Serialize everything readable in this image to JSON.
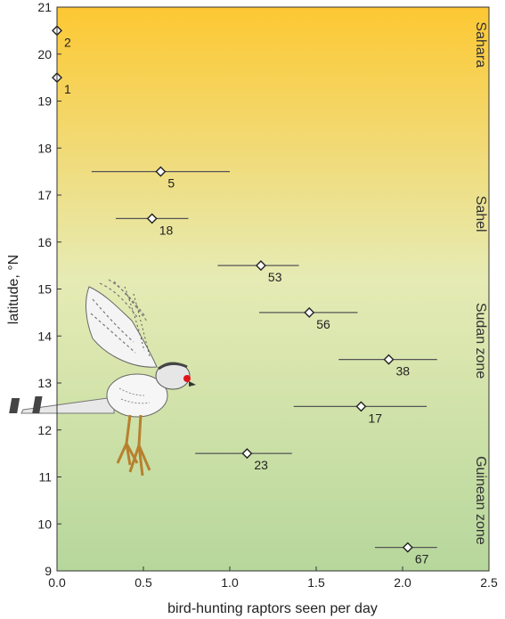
{
  "chart_data": {
    "type": "scatter",
    "xlabel": "bird-hunting raptors seen per day",
    "ylabel": "latitude, °N",
    "xlim": [
      0,
      2.5
    ],
    "ylim": [
      9,
      21
    ],
    "x_ticks": [
      "0.0",
      "0.5",
      "1.0",
      "1.5",
      "2.0",
      "2.5"
    ],
    "y_ticks": [
      "9",
      "10",
      "11",
      "12",
      "13",
      "14",
      "15",
      "16",
      "17",
      "18",
      "19",
      "20",
      "21"
    ],
    "grid": false,
    "background_gradient": {
      "top": "#fdc832",
      "middle": "#e6ebb4",
      "bottom": "#b6d79c"
    },
    "zones": [
      {
        "label": "Sahara",
        "lat_from": 19.4,
        "lat_to": 21
      },
      {
        "label": "Sahel",
        "lat_from": 15.8,
        "lat_to": 17.4
      },
      {
        "label": "Sudan zone",
        "lat_from": 12.4,
        "lat_to": 15.4
      },
      {
        "label": "Guinean zone",
        "lat_from": 9,
        "lat_to": 12
      }
    ],
    "points": [
      {
        "x": 0.0,
        "y": 20.5,
        "x_err_low": 0.0,
        "x_err_high": 0.0,
        "label": "2"
      },
      {
        "x": 0.0,
        "y": 19.5,
        "x_err_low": 0.0,
        "x_err_high": 0.0,
        "label": "1"
      },
      {
        "x": 0.6,
        "y": 17.5,
        "x_err_low": 0.2,
        "x_err_high": 1.0,
        "label": "5"
      },
      {
        "x": 0.55,
        "y": 16.5,
        "x_err_low": 0.34,
        "x_err_high": 0.76,
        "label": "18"
      },
      {
        "x": 1.18,
        "y": 15.5,
        "x_err_low": 0.93,
        "x_err_high": 1.4,
        "label": "53"
      },
      {
        "x": 1.46,
        "y": 14.5,
        "x_err_low": 1.17,
        "x_err_high": 1.74,
        "label": "56"
      },
      {
        "x": 1.92,
        "y": 13.5,
        "x_err_low": 1.63,
        "x_err_high": 2.2,
        "label": "38"
      },
      {
        "x": 1.76,
        "y": 12.5,
        "x_err_low": 1.37,
        "x_err_high": 2.14,
        "label": "17"
      },
      {
        "x": 1.1,
        "y": 11.5,
        "x_err_low": 0.8,
        "x_err_high": 1.36,
        "label": "23"
      },
      {
        "x": 2.03,
        "y": 9.5,
        "x_err_low": 1.84,
        "x_err_high": 2.2,
        "label": "67"
      }
    ],
    "illustration": "raptor-illustration"
  }
}
